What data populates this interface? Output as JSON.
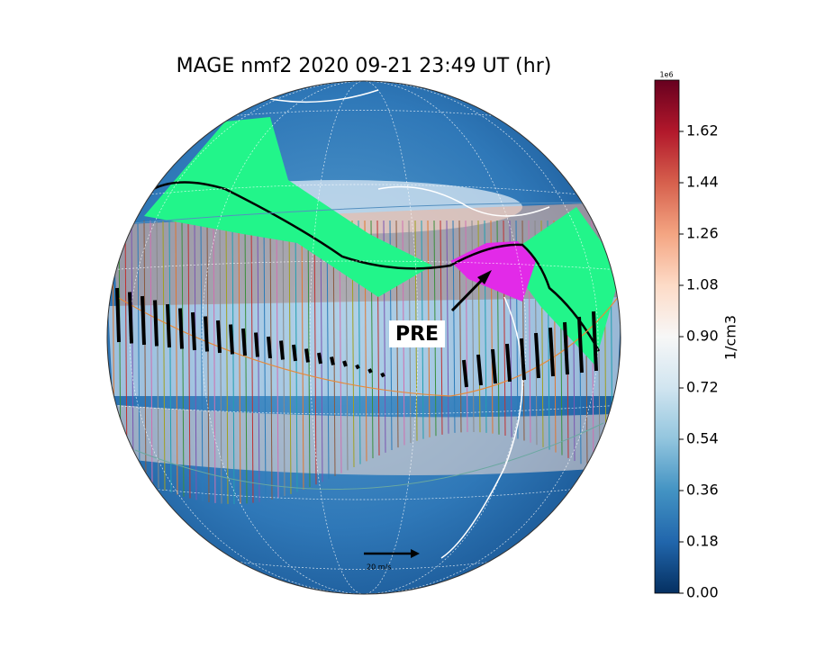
{
  "title": "MAGE nmf2 2020 09-21 23:49 UT (hr)",
  "colorbar": {
    "label": "1/cm3",
    "scale_label": "1e6",
    "lim": [
      0,
      1.8
    ],
    "ticks": [
      {
        "value": 0,
        "label": "0.00"
      },
      0.18,
      0.36,
      0.54,
      0.72,
      {
        "value": 0.9,
        "label": "0.90"
      },
      1.08,
      1.26,
      1.44,
      1.62
    ],
    "colors": [
      "#053061",
      "#2166ac",
      "#4393c3",
      "#92c5de",
      "#d1e5f0",
      "#f7f7f7",
      "#fddbc7",
      "#f4a582",
      "#d6604d",
      "#b2182b",
      "#67001f"
    ]
  },
  "annotations": {
    "pre": "PRE",
    "scale_arrow": "20 m/s"
  }
}
